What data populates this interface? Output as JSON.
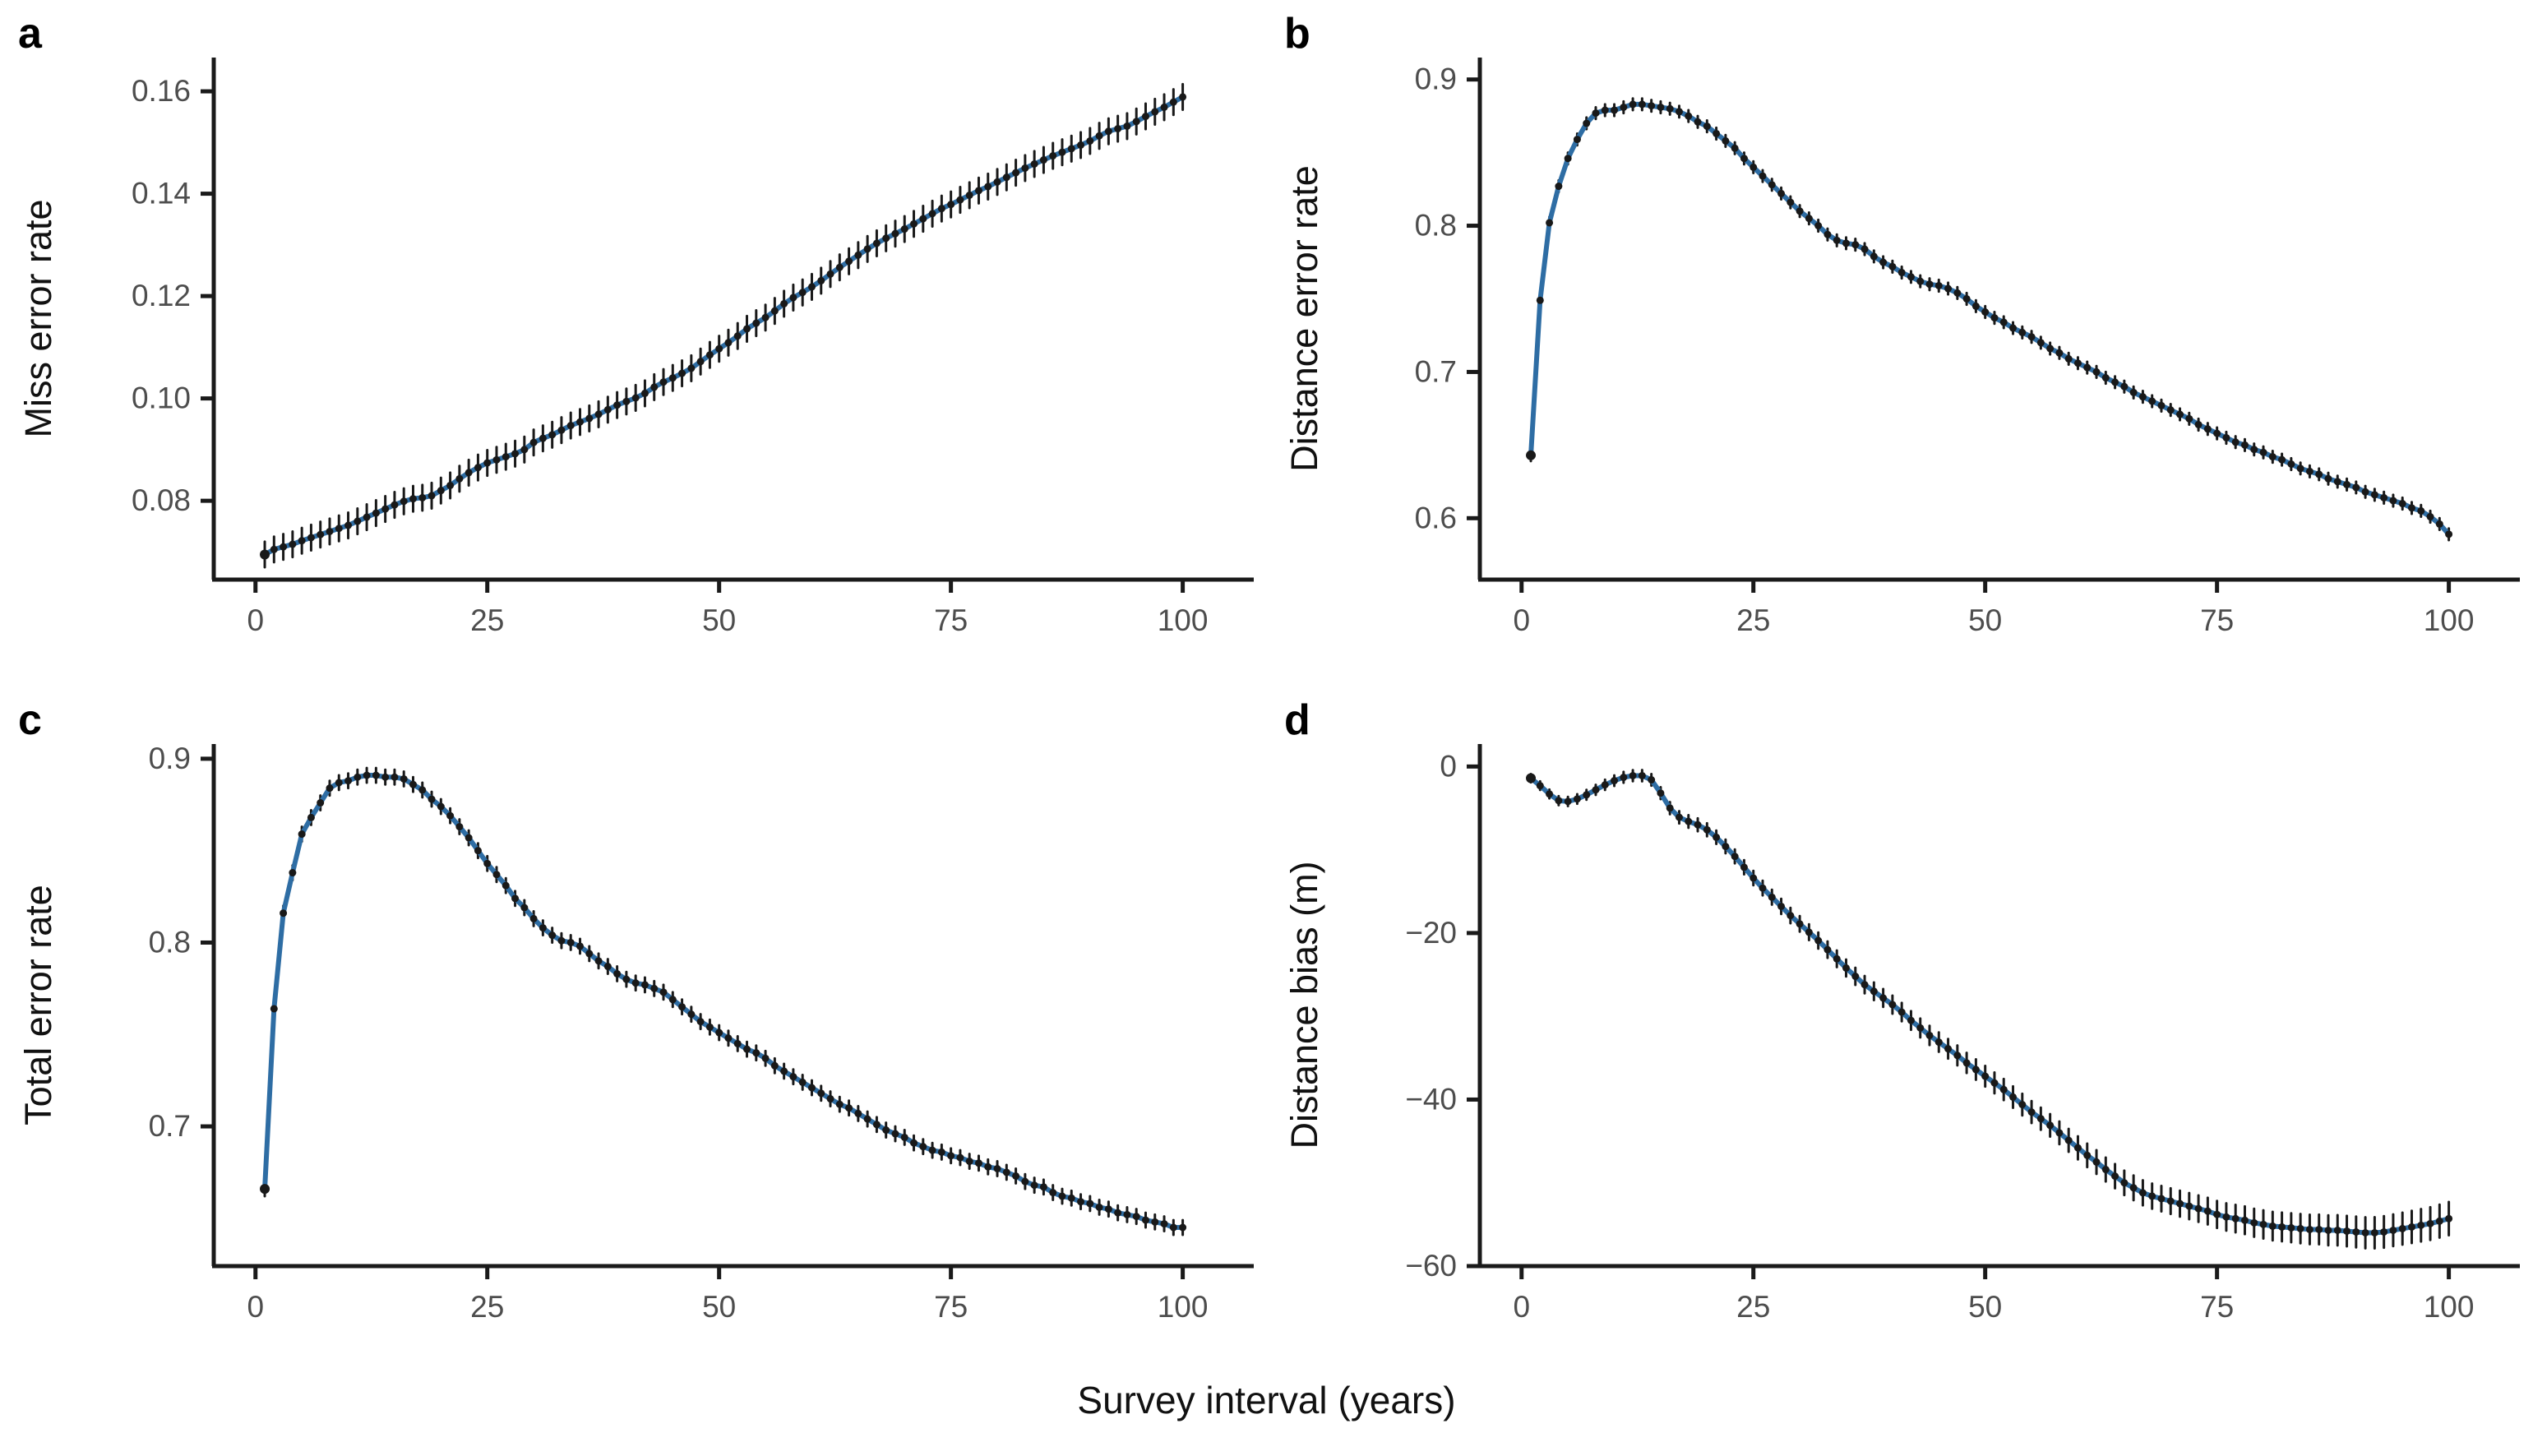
{
  "figure": {
    "xlabel": "Survey interval (years)",
    "colors": {
      "background": "#ffffff",
      "line": "#2e6da4",
      "point": "#191919",
      "error_bar": "#191919",
      "axis": "#1a1a1a",
      "tick_label": "#4d4d4d",
      "axis_label": "#111111",
      "panel_letter": "#000000"
    }
  },
  "chart_data": [
    {
      "type": "line",
      "panel_label": "a",
      "ylabel": "Miss error rate",
      "x_from": 1,
      "x_to": 100,
      "xlim": [
        -4.5,
        105
      ],
      "ylim": [
        0.0646,
        0.1666
      ],
      "x_ticks": [
        0,
        25,
        50,
        75,
        100
      ],
      "x_tick_labels": [
        "0",
        "25",
        "50",
        "75",
        "100"
      ],
      "y_ticks": [
        0.08,
        0.1,
        0.12,
        0.14,
        0.16
      ],
      "y_tick_labels": [
        "0.08",
        "0.10",
        "0.12",
        "0.14",
        "0.16"
      ],
      "grid": false,
      "legend": false,
      "err_start": 0.0025,
      "err_end": 0.0025,
      "y": [
        0.0695,
        0.0705,
        0.071,
        0.0715,
        0.0722,
        0.0728,
        0.0734,
        0.074,
        0.0746,
        0.0752,
        0.076,
        0.0768,
        0.0776,
        0.0784,
        0.0792,
        0.0799,
        0.0804,
        0.0806,
        0.081,
        0.082,
        0.083,
        0.0843,
        0.0855,
        0.0865,
        0.0874,
        0.088,
        0.0886,
        0.0892,
        0.09,
        0.0914,
        0.0922,
        0.0929,
        0.0938,
        0.0947,
        0.0954,
        0.0961,
        0.0969,
        0.0978,
        0.0987,
        0.0994,
        0.1001,
        0.101,
        0.1022,
        0.1032,
        0.104,
        0.1049,
        0.1059,
        0.1072,
        0.1085,
        0.1097,
        0.1109,
        0.1122,
        0.1136,
        0.1147,
        0.1158,
        0.1171,
        0.1185,
        0.1197,
        0.1207,
        0.1218,
        0.123,
        0.1243,
        0.1256,
        0.1268,
        0.128,
        0.1292,
        0.1303,
        0.1313,
        0.1322,
        0.1331,
        0.1341,
        0.1351,
        0.1361,
        0.1371,
        0.1379,
        0.1388,
        0.1397,
        0.1406,
        0.1414,
        0.1423,
        0.1432,
        0.1441,
        0.145,
        0.1458,
        0.1466,
        0.1474,
        0.1481,
        0.1488,
        0.1495,
        0.1503,
        0.1513,
        0.1522,
        0.1527,
        0.1532,
        0.1541,
        0.1551,
        0.156,
        0.1569,
        0.1579,
        0.1589
      ]
    },
    {
      "type": "line",
      "panel_label": "b",
      "ylabel": "Distance error rate",
      "x_from": 1,
      "x_to": 100,
      "xlim": [
        -4.5,
        105
      ],
      "ylim": [
        0.558,
        0.915
      ],
      "x_ticks": [
        0,
        25,
        50,
        75,
        100
      ],
      "x_tick_labels": [
        "0",
        "25",
        "50",
        "75",
        "100"
      ],
      "y_ticks": [
        0.6,
        0.7,
        0.8,
        0.9
      ],
      "y_tick_labels": [
        "0.6",
        "0.7",
        "0.8",
        "0.9"
      ],
      "grid": false,
      "legend": false,
      "err_start": 0.004,
      "err_end": 0.004,
      "y": [
        0.643,
        0.749,
        0.802,
        0.827,
        0.846,
        0.859,
        0.87,
        0.877,
        0.879,
        0.879,
        0.881,
        0.883,
        0.883,
        0.882,
        0.881,
        0.88,
        0.878,
        0.875,
        0.871,
        0.868,
        0.863,
        0.858,
        0.853,
        0.846,
        0.84,
        0.834,
        0.828,
        0.822,
        0.816,
        0.81,
        0.805,
        0.8,
        0.794,
        0.79,
        0.788,
        0.787,
        0.784,
        0.779,
        0.775,
        0.772,
        0.768,
        0.765,
        0.762,
        0.76,
        0.759,
        0.757,
        0.754,
        0.75,
        0.745,
        0.741,
        0.737,
        0.734,
        0.73,
        0.727,
        0.724,
        0.72,
        0.716,
        0.713,
        0.709,
        0.706,
        0.703,
        0.7,
        0.696,
        0.693,
        0.69,
        0.686,
        0.683,
        0.68,
        0.677,
        0.674,
        0.671,
        0.668,
        0.664,
        0.661,
        0.658,
        0.655,
        0.652,
        0.65,
        0.647,
        0.645,
        0.642,
        0.64,
        0.637,
        0.634,
        0.632,
        0.63,
        0.627,
        0.625,
        0.623,
        0.621,
        0.618,
        0.616,
        0.614,
        0.612,
        0.61,
        0.607,
        0.605,
        0.601,
        0.596,
        0.589
      ]
    },
    {
      "type": "line",
      "panel_label": "c",
      "ylabel": "Total error rate",
      "x_from": 1,
      "x_to": 100,
      "xlim": [
        -4.5,
        105
      ],
      "ylim": [
        0.624,
        0.908
      ],
      "x_ticks": [
        0,
        25,
        50,
        75,
        100
      ],
      "x_tick_labels": [
        "0",
        "25",
        "50",
        "75",
        "100"
      ],
      "y_ticks": [
        0.7,
        0.8,
        0.9
      ],
      "y_tick_labels": [
        "0.7",
        "0.8",
        "0.9"
      ],
      "grid": false,
      "legend": false,
      "err_start": 0.004,
      "err_end": 0.004,
      "y": [
        0.666,
        0.764,
        0.816,
        0.838,
        0.859,
        0.868,
        0.876,
        0.884,
        0.887,
        0.888,
        0.89,
        0.891,
        0.891,
        0.89,
        0.89,
        0.889,
        0.886,
        0.883,
        0.878,
        0.874,
        0.869,
        0.863,
        0.857,
        0.85,
        0.843,
        0.837,
        0.831,
        0.824,
        0.819,
        0.813,
        0.808,
        0.804,
        0.801,
        0.8,
        0.798,
        0.794,
        0.79,
        0.787,
        0.783,
        0.78,
        0.778,
        0.777,
        0.775,
        0.773,
        0.769,
        0.765,
        0.761,
        0.757,
        0.754,
        0.751,
        0.748,
        0.745,
        0.742,
        0.74,
        0.737,
        0.733,
        0.73,
        0.727,
        0.724,
        0.721,
        0.718,
        0.715,
        0.712,
        0.71,
        0.707,
        0.704,
        0.701,
        0.698,
        0.696,
        0.694,
        0.691,
        0.689,
        0.687,
        0.686,
        0.684,
        0.683,
        0.681,
        0.68,
        0.678,
        0.677,
        0.675,
        0.673,
        0.67,
        0.668,
        0.667,
        0.664,
        0.662,
        0.661,
        0.659,
        0.658,
        0.656,
        0.655,
        0.653,
        0.652,
        0.651,
        0.649,
        0.648,
        0.647,
        0.645,
        0.645
      ]
    },
    {
      "type": "line",
      "panel_label": "d",
      "ylabel": "Distance bias (m)",
      "x_from": 1,
      "x_to": 100,
      "xlim": [
        -4.5,
        105
      ],
      "ylim": [
        -60,
        2.7
      ],
      "x_ticks": [
        0,
        25,
        50,
        75,
        100
      ],
      "x_tick_labels": [
        "0",
        "25",
        "50",
        "75",
        "100"
      ],
      "y_ticks": [
        0,
        -20,
        -40,
        -60
      ],
      "y_tick_labels": [
        "0",
        "−20",
        "−40",
        "−60"
      ],
      "grid": false,
      "legend": false,
      "err_start": 0.5,
      "err_end": 2.0,
      "y": [
        -1.4,
        -2.3,
        -3.3,
        -4.1,
        -4.2,
        -3.9,
        -3.4,
        -2.8,
        -2.2,
        -1.7,
        -1.3,
        -1.1,
        -1.1,
        -1.6,
        -3.2,
        -5.0,
        -6.1,
        -6.6,
        -7.0,
        -7.6,
        -8.5,
        -9.6,
        -10.8,
        -12.1,
        -13.4,
        -14.6,
        -15.7,
        -16.8,
        -17.9,
        -18.9,
        -19.9,
        -20.9,
        -22.0,
        -23.1,
        -24.2,
        -25.2,
        -26.2,
        -27.0,
        -27.8,
        -28.6,
        -29.5,
        -30.5,
        -31.4,
        -32.3,
        -33.1,
        -33.9,
        -34.7,
        -35.6,
        -36.4,
        -37.2,
        -38.0,
        -38.8,
        -39.7,
        -40.6,
        -41.5,
        -42.3,
        -43.1,
        -44.0,
        -44.9,
        -45.8,
        -46.7,
        -47.5,
        -48.4,
        -49.2,
        -50.0,
        -50.6,
        -51.2,
        -51.6,
        -51.9,
        -52.2,
        -52.5,
        -52.8,
        -53.1,
        -53.4,
        -53.8,
        -54.1,
        -54.3,
        -54.5,
        -54.8,
        -55.0,
        -55.2,
        -55.3,
        -55.4,
        -55.5,
        -55.6,
        -55.6,
        -55.7,
        -55.7,
        -55.8,
        -55.9,
        -56.0,
        -56.0,
        -55.9,
        -55.7,
        -55.5,
        -55.3,
        -55.1,
        -54.9,
        -54.6,
        -54.3
      ]
    }
  ]
}
